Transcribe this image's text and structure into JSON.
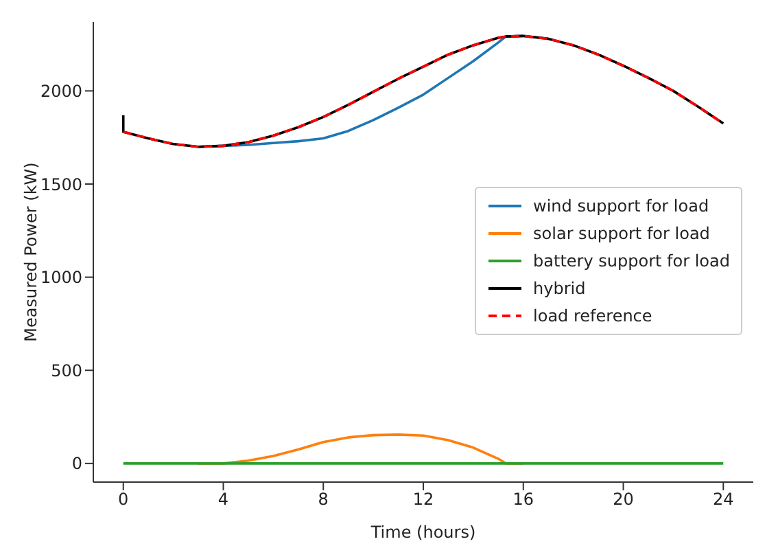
{
  "chart_data": {
    "type": "line",
    "xlabel": "Time (hours)",
    "ylabel": "Measured Power (kW)",
    "xlim": [
      -1.2,
      25.2
    ],
    "xticks": [
      0,
      4,
      8,
      12,
      16,
      20,
      24
    ],
    "ylim": [
      -100,
      2370
    ],
    "yticks": [
      0,
      500,
      1000,
      1500,
      2000
    ],
    "grid": false,
    "legend": "right",
    "marker": "none",
    "series": [
      {
        "name": "wind support for load",
        "color": "#1f77b4",
        "line_style": "solid",
        "x": [
          3,
          4,
          5,
          6,
          7,
          8,
          9,
          10,
          11,
          12,
          13,
          14,
          15,
          15.3,
          16
        ],
        "values": [
          1700,
          1705,
          1710,
          1720,
          1730,
          1745,
          1785,
          1843,
          1910,
          1980,
          2070,
          2160,
          2260,
          2292,
          2295
        ]
      },
      {
        "name": "solar support for load",
        "color": "#ff7f0e",
        "line_style": "solid",
        "x": [
          3,
          4,
          5,
          6,
          7,
          8,
          9,
          10,
          11,
          12,
          13,
          14,
          15,
          15.3,
          16
        ],
        "values": [
          0,
          0,
          15,
          40,
          75,
          115,
          140,
          152,
          155,
          150,
          125,
          85,
          25,
          0,
          0
        ]
      },
      {
        "name": "battery support for load",
        "color": "#2ca02c",
        "line_style": "solid",
        "x": [
          0,
          24
        ],
        "values": [
          0,
          0
        ]
      },
      {
        "name": "hybrid",
        "color": "#000000",
        "line_style": "solid",
        "x": [
          0,
          0,
          1,
          2,
          3,
          4,
          5,
          6,
          7,
          8,
          9,
          10,
          11,
          12,
          13,
          14,
          15,
          15.3,
          16,
          17,
          18,
          19,
          20,
          21,
          22,
          23,
          24
        ],
        "values": [
          1870,
          1780,
          1745,
          1715,
          1700,
          1705,
          1725,
          1760,
          1805,
          1860,
          1925,
          1995,
          2065,
          2130,
          2195,
          2245,
          2285,
          2292,
          2295,
          2280,
          2245,
          2195,
          2135,
          2070,
          2000,
          1915,
          1825
        ]
      },
      {
        "name": "load reference",
        "color": "#ff0000",
        "line_style": "dashed",
        "x": [
          0,
          1,
          2,
          3,
          4,
          5,
          6,
          7,
          8,
          9,
          10,
          11,
          12,
          13,
          14,
          15,
          15.3,
          16,
          17,
          18,
          19,
          20,
          21,
          22,
          23,
          24
        ],
        "values": [
          1780,
          1745,
          1715,
          1700,
          1705,
          1725,
          1760,
          1805,
          1860,
          1925,
          1995,
          2065,
          2130,
          2195,
          2245,
          2285,
          2292,
          2295,
          2280,
          2245,
          2195,
          2135,
          2070,
          2000,
          1915,
          1825
        ]
      }
    ]
  }
}
